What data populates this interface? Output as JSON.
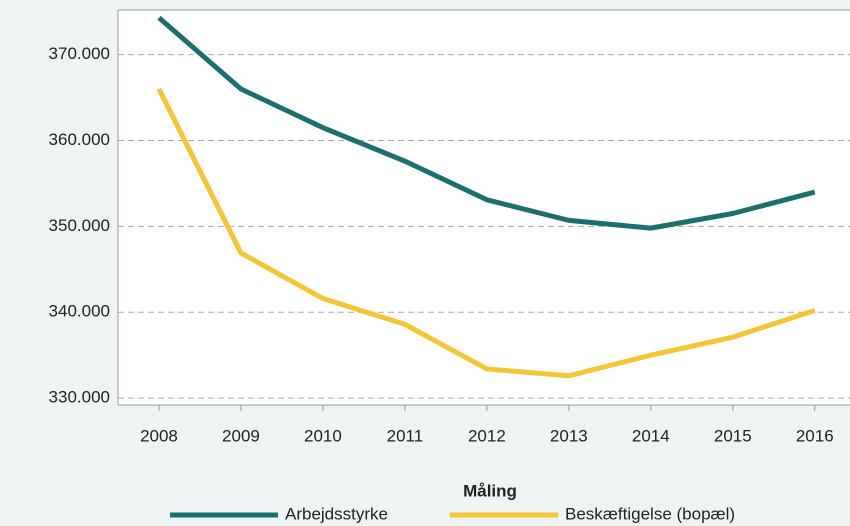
{
  "chart_data": {
    "type": "line",
    "x": [
      2008,
      2009,
      2010,
      2011,
      2012,
      2013,
      2014,
      2015,
      2016
    ],
    "series": [
      {
        "name": "Arbejdsstyrke",
        "color": "#1b6f6d",
        "values": [
          374300,
          366000,
          361500,
          357600,
          353100,
          350700,
          349800,
          351500,
          354000
        ]
      },
      {
        "name": "Beskæftigelse (bopæl)",
        "color": "#f4c534",
        "values": [
          366000,
          346900,
          341600,
          338600,
          333400,
          332600,
          335000,
          337100,
          340200
        ]
      }
    ],
    "xlim": [
      2007.5,
      2016.43
    ],
    "xticks": [
      2008,
      2009,
      2010,
      2011,
      2012,
      2013,
      2014,
      2015,
      2016
    ],
    "ylim": [
      329200,
      375200
    ],
    "yticks": [
      {
        "value": 330000,
        "label": "330.000"
      },
      {
        "value": 340000,
        "label": "340.000"
      },
      {
        "value": 350000,
        "label": "350.000"
      },
      {
        "value": 360000,
        "label": "360.000"
      },
      {
        "value": 370000,
        "label": "370.000"
      }
    ],
    "grid": true,
    "legend_title": "Måling",
    "legend": "bottom"
  }
}
